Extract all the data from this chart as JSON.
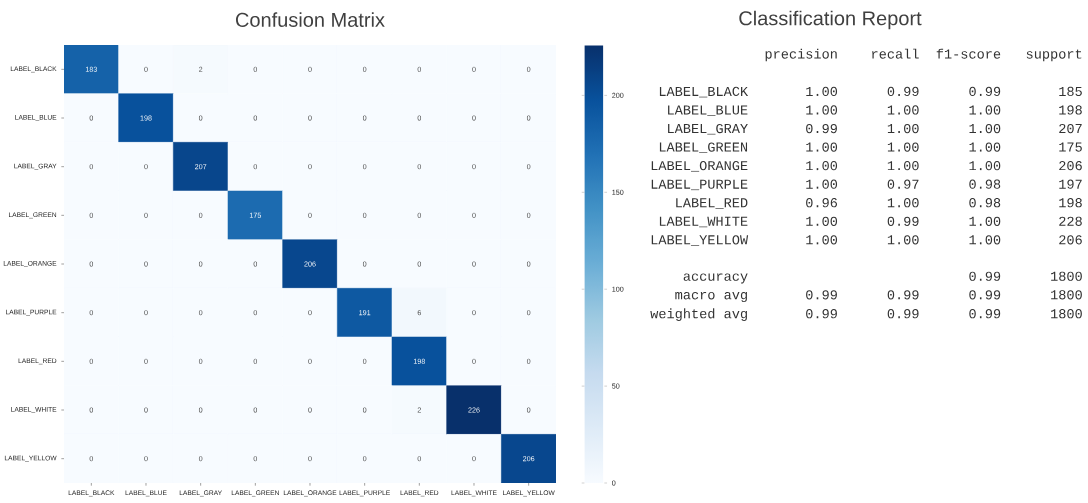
{
  "chart_data": [
    {
      "type": "heatmap",
      "title": "Confusion Matrix",
      "categories": [
        "LABEL_BLACK",
        "LABEL_BLUE",
        "LABEL_GRAY",
        "LABEL_GREEN",
        "LABEL_ORANGE",
        "LABEL_PURPLE",
        "LABEL_RED",
        "LABEL_WHITE",
        "LABEL_YELLOW"
      ],
      "y_categories": [
        "LABEL_BLACK",
        "LABEL_BLUE",
        "LABEL_GRAY",
        "LABEL_GREEN",
        "LABEL_ORANGE",
        "LABEL_PURPLE",
        "LABEL_RED",
        "LABEL_WHITE",
        "LABEL_YELLOW"
      ],
      "cells": [
        [
          183,
          0,
          2,
          0,
          0,
          0,
          0,
          0,
          0
        ],
        [
          0,
          198,
          0,
          0,
          0,
          0,
          0,
          0,
          0
        ],
        [
          0,
          0,
          207,
          0,
          0,
          0,
          0,
          0,
          0
        ],
        [
          0,
          0,
          0,
          175,
          0,
          0,
          0,
          0,
          0
        ],
        [
          0,
          0,
          0,
          0,
          206,
          0,
          0,
          0,
          0
        ],
        [
          0,
          0,
          0,
          0,
          0,
          191,
          6,
          0,
          0
        ],
        [
          0,
          0,
          0,
          0,
          0,
          0,
          198,
          0,
          0
        ],
        [
          0,
          0,
          0,
          0,
          0,
          0,
          2,
          226,
          0
        ],
        [
          0,
          0,
          0,
          0,
          0,
          0,
          0,
          0,
          206
        ]
      ],
      "clim": [
        0,
        226
      ],
      "cticks": [
        0,
        50,
        100,
        150,
        200
      ],
      "data_labels": true
    },
    {
      "type": "other",
      "title": "Classification Report",
      "annotations": [
        "precision    recall  f1-score   support",
        "LABEL_BLACK       1.00      0.99      0.99       185",
        "LABEL_BLUE       1.00      1.00      1.00       198",
        "LABEL_GRAY       0.99      1.00      1.00       207",
        "LABEL_GREEN       1.00      1.00      1.00       175",
        "LABEL_ORANGE       1.00      1.00      1.00       206",
        "LABEL_PURPLE       1.00      0.97      0.98       197",
        "LABEL_RED       0.96      1.00      0.98       198",
        "LABEL_WHITE       1.00      0.99      1.00       228",
        "LABEL_YELLOW       1.00      1.00      1.00       206",
        "accuracy                           0.99      1800",
        "macro avg       0.99      0.99      0.99      1800",
        "weighted avg       0.99      0.99      0.99      1800"
      ]
    }
  ]
}
